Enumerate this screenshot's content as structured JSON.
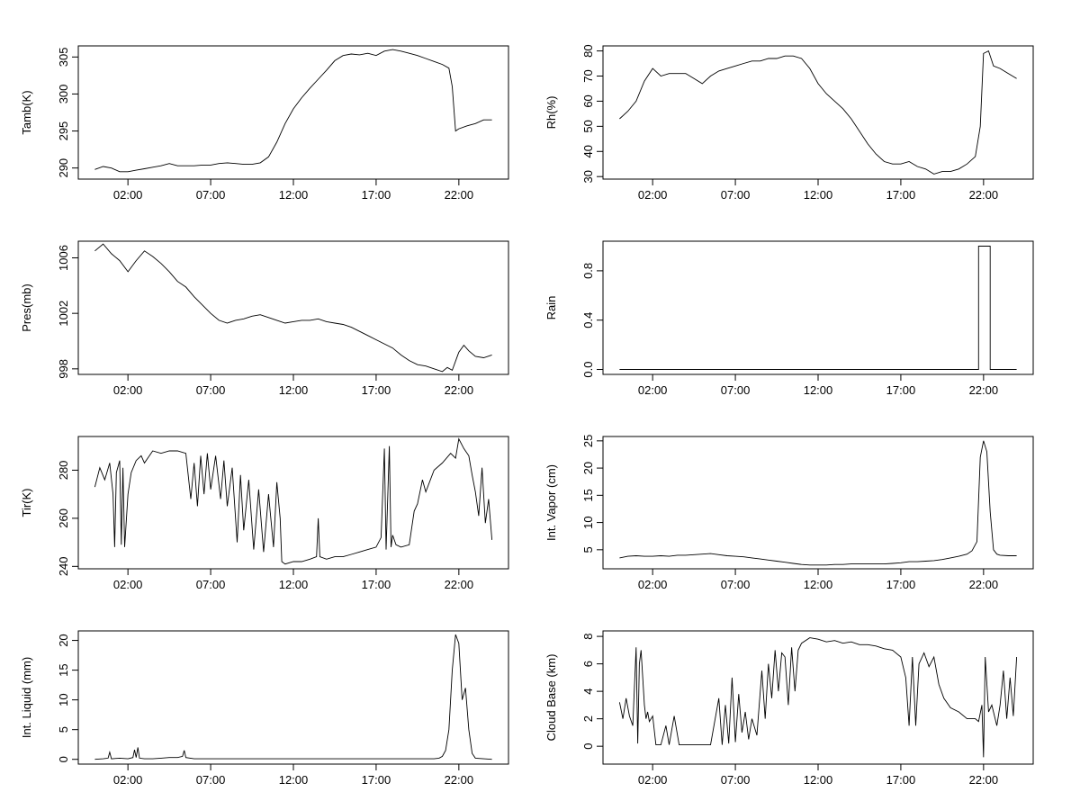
{
  "chart_data": [
    {
      "type": "line",
      "ylabel": "Tamb(K)",
      "xticks": [
        "02:00",
        "07:00",
        "12:00",
        "17:00",
        "22:00"
      ],
      "yticks": [
        290,
        295,
        300,
        305
      ],
      "ylim": [
        288.5,
        306.5
      ],
      "series": [
        {
          "x": [
            0.0,
            0.5,
            1.0,
            1.5,
            2.0,
            2.5,
            3.0,
            3.5,
            4.0,
            4.5,
            5.0,
            5.5,
            6.0,
            6.5,
            7.0,
            7.5,
            8.0,
            8.5,
            9.0,
            9.5,
            10.0,
            10.5,
            11.0,
            11.5,
            12.0,
            12.5,
            13.0,
            13.5,
            14.0,
            14.5,
            15.0,
            15.5,
            16.0,
            16.5,
            17.0,
            17.5,
            18.0,
            18.5,
            19.0,
            19.5,
            20.0,
            20.5,
            21.0,
            21.4,
            21.6,
            21.8,
            22.0,
            22.5,
            23.0,
            23.5,
            24.0
          ],
          "y": [
            289.8,
            290.2,
            290.0,
            289.5,
            289.5,
            289.7,
            289.9,
            290.1,
            290.3,
            290.6,
            290.3,
            290.3,
            290.3,
            290.4,
            290.4,
            290.6,
            290.7,
            290.6,
            290.5,
            290.5,
            290.7,
            291.5,
            293.5,
            296.0,
            298.0,
            299.5,
            300.8,
            302.0,
            303.2,
            304.5,
            305.2,
            305.4,
            305.3,
            305.5,
            305.2,
            305.8,
            306.0,
            305.8,
            305.5,
            305.2,
            304.8,
            304.4,
            304.0,
            303.5,
            301.0,
            295.0,
            295.3,
            295.7,
            296.0,
            296.5,
            296.5
          ]
        }
      ]
    },
    {
      "type": "line",
      "ylabel": "Rh(%)",
      "xticks": [
        "02:00",
        "07:00",
        "12:00",
        "17:00",
        "22:00"
      ],
      "yticks": [
        30,
        40,
        50,
        60,
        70,
        80
      ],
      "ylim": [
        29,
        82
      ],
      "series": [
        {
          "x": [
            0.0,
            0.5,
            1.0,
            1.5,
            2.0,
            2.5,
            3.0,
            3.5,
            4.0,
            4.5,
            5.0,
            5.5,
            6.0,
            6.5,
            7.0,
            7.5,
            8.0,
            8.5,
            9.0,
            9.5,
            10.0,
            10.5,
            11.0,
            11.5,
            12.0,
            12.5,
            13.0,
            13.5,
            14.0,
            14.5,
            15.0,
            15.5,
            16.0,
            16.5,
            17.0,
            17.5,
            18.0,
            18.5,
            19.0,
            19.5,
            20.0,
            20.5,
            21.0,
            21.5,
            21.8,
            22.0,
            22.3,
            22.6,
            23.0,
            23.5,
            24.0
          ],
          "y": [
            53,
            56,
            60,
            68,
            73,
            70,
            71,
            71,
            71,
            69,
            67,
            70,
            72,
            73,
            74,
            75,
            76,
            76,
            77,
            77,
            78,
            78,
            77,
            73,
            67,
            63,
            60,
            57,
            53,
            48,
            43,
            39,
            36,
            35,
            35,
            36,
            34,
            33,
            31,
            32,
            32,
            33,
            35,
            38,
            50,
            79,
            80,
            74,
            73,
            71,
            69
          ]
        }
      ]
    },
    {
      "type": "line",
      "ylabel": "Pres(mb)",
      "xticks": [
        "02:00",
        "07:00",
        "12:00",
        "17:00",
        "22:00"
      ],
      "yticks": [
        998,
        1002,
        1006
      ],
      "ylim": [
        997.6,
        1007.2
      ],
      "series": [
        {
          "x": [
            0.0,
            0.5,
            1.0,
            1.5,
            2.0,
            2.5,
            3.0,
            3.5,
            4.0,
            4.5,
            5.0,
            5.5,
            6.0,
            6.5,
            7.0,
            7.5,
            8.0,
            8.5,
            9.0,
            9.5,
            10.0,
            10.5,
            11.0,
            11.5,
            12.0,
            12.5,
            13.0,
            13.5,
            14.0,
            14.5,
            15.0,
            15.5,
            16.0,
            16.5,
            17.0,
            17.5,
            18.0,
            18.5,
            19.0,
            19.5,
            20.0,
            20.5,
            21.0,
            21.3,
            21.6,
            22.0,
            22.3,
            22.6,
            23.0,
            23.5,
            24.0
          ],
          "y": [
            1006.5,
            1007.0,
            1006.3,
            1005.8,
            1005.0,
            1005.8,
            1006.5,
            1006.1,
            1005.6,
            1005.0,
            1004.3,
            1003.9,
            1003.2,
            1002.6,
            1002.0,
            1001.5,
            1001.3,
            1001.5,
            1001.6,
            1001.8,
            1001.9,
            1001.7,
            1001.5,
            1001.3,
            1001.4,
            1001.5,
            1001.5,
            1001.6,
            1001.4,
            1001.3,
            1001.2,
            1001.0,
            1000.7,
            1000.4,
            1000.1,
            999.8,
            999.5,
            999.0,
            998.6,
            998.3,
            998.2,
            998.0,
            997.8,
            998.1,
            997.9,
            999.2,
            999.7,
            999.3,
            998.9,
            998.8,
            999.0
          ]
        }
      ]
    },
    {
      "type": "line",
      "ylabel": "Rain",
      "xticks": [
        "02:00",
        "07:00",
        "12:00",
        "17:00",
        "22:00"
      ],
      "yticks": [
        "0.0",
        "0.4",
        "0.8"
      ],
      "ylim": [
        -0.04,
        1.04
      ],
      "series": [
        {
          "x": [
            0.0,
            21.7,
            21.7,
            22.4,
            22.4,
            24.0
          ],
          "y": [
            0,
            0,
            1,
            1,
            0,
            0
          ]
        }
      ]
    },
    {
      "type": "line",
      "ylabel": "Tir(K)",
      "xticks": [
        "02:00",
        "07:00",
        "12:00",
        "17:00",
        "22:00"
      ],
      "yticks": [
        240,
        260,
        280
      ],
      "ylim": [
        239,
        294
      ],
      "series": [
        {
          "x": [
            0.0,
            0.3,
            0.6,
            0.9,
            1.1,
            1.2,
            1.3,
            1.5,
            1.6,
            1.7,
            1.8,
            2.0,
            2.2,
            2.5,
            2.8,
            3.0,
            3.5,
            4.0,
            4.5,
            5.0,
            5.5,
            5.8,
            6.0,
            6.2,
            6.4,
            6.6,
            6.8,
            7.0,
            7.3,
            7.6,
            7.8,
            8.0,
            8.3,
            8.6,
            8.8,
            9.0,
            9.3,
            9.6,
            9.9,
            10.2,
            10.5,
            10.8,
            11.0,
            11.2,
            11.3,
            11.5,
            12.0,
            12.5,
            13.0,
            13.4,
            13.5,
            13.6,
            14.0,
            14.5,
            15.0,
            15.5,
            16.0,
            16.5,
            17.0,
            17.3,
            17.5,
            17.6,
            17.8,
            17.9,
            18.0,
            18.2,
            18.5,
            19.0,
            19.3,
            19.5,
            19.8,
            20.0,
            20.5,
            21.0,
            21.5,
            21.8,
            22.0,
            22.3,
            22.6,
            22.8,
            23.0,
            23.2,
            23.4,
            23.6,
            23.8,
            24.0
          ],
          "y": [
            273,
            281,
            276,
            283,
            270,
            248,
            279,
            284,
            249,
            281,
            248,
            270,
            279,
            284,
            286,
            283,
            288,
            287,
            288,
            288,
            287,
            268,
            283,
            265,
            286,
            270,
            287,
            272,
            286,
            268,
            284,
            265,
            281,
            250,
            278,
            255,
            276,
            247,
            272,
            246,
            270,
            248,
            275,
            260,
            242,
            241,
            242,
            242,
            243,
            244,
            260,
            244,
            243,
            244,
            244,
            245,
            246,
            247,
            248,
            252,
            289,
            247,
            290,
            248,
            253,
            249,
            248,
            249,
            263,
            266,
            276,
            271,
            280,
            283,
            287,
            285,
            293,
            289,
            286,
            278,
            271,
            261,
            281,
            258,
            268,
            251
          ]
        }
      ]
    },
    {
      "type": "line",
      "ylabel": "Int. Vapor (cm)",
      "xticks": [
        "02:00",
        "07:00",
        "12:00",
        "17:00",
        "22:00"
      ],
      "yticks": [
        5,
        10,
        15,
        20,
        25
      ],
      "ylim": [
        1.5,
        25.8
      ],
      "series": [
        {
          "x": [
            0.0,
            0.5,
            1.0,
            1.5,
            2.0,
            2.5,
            3.0,
            3.5,
            4.0,
            4.5,
            5.0,
            5.5,
            6.0,
            6.5,
            7.0,
            7.5,
            8.0,
            8.5,
            9.0,
            9.5,
            10.0,
            10.5,
            11.0,
            11.5,
            12.0,
            12.5,
            13.0,
            13.5,
            14.0,
            14.5,
            15.0,
            15.5,
            16.0,
            16.5,
            17.0,
            17.5,
            18.0,
            18.5,
            19.0,
            19.5,
            20.0,
            20.5,
            21.0,
            21.3,
            21.6,
            21.8,
            22.0,
            22.2,
            22.4,
            22.6,
            22.8,
            23.0,
            23.5,
            24.0
          ],
          "y": [
            3.5,
            3.8,
            3.9,
            3.8,
            3.8,
            3.9,
            3.8,
            4.0,
            4.0,
            4.1,
            4.2,
            4.3,
            4.1,
            3.9,
            3.8,
            3.7,
            3.5,
            3.3,
            3.1,
            2.9,
            2.7,
            2.5,
            2.3,
            2.2,
            2.2,
            2.2,
            2.3,
            2.3,
            2.4,
            2.4,
            2.4,
            2.4,
            2.4,
            2.5,
            2.6,
            2.8,
            2.8,
            2.9,
            3.0,
            3.2,
            3.5,
            3.8,
            4.2,
            4.8,
            6.5,
            22.0,
            25.0,
            23.0,
            12.0,
            5.0,
            4.2,
            4.0,
            3.9,
            3.9
          ]
        }
      ]
    },
    {
      "type": "line",
      "ylabel": "Int. Liquid (mm)",
      "xticks": [
        "02:00",
        "07:00",
        "12:00",
        "17:00",
        "22:00"
      ],
      "yticks": [
        0,
        5,
        10,
        15,
        20
      ],
      "ylim": [
        -0.8,
        21.6
      ],
      "series": [
        {
          "x": [
            0.0,
            0.5,
            0.8,
            0.9,
            1.0,
            1.5,
            2.0,
            2.3,
            2.4,
            2.5,
            2.6,
            2.7,
            3.0,
            3.5,
            4.0,
            4.5,
            5.0,
            5.3,
            5.4,
            5.5,
            6.0,
            7.0,
            8.0,
            9.0,
            10.0,
            11.0,
            12.0,
            13.0,
            14.0,
            15.0,
            16.0,
            17.0,
            18.0,
            19.0,
            20.0,
            20.5,
            20.8,
            21.0,
            21.2,
            21.4,
            21.6,
            21.8,
            22.0,
            22.2,
            22.4,
            22.6,
            22.8,
            23.0,
            23.5,
            24.0
          ],
          "y": [
            0,
            0.1,
            0.2,
            1.2,
            0.1,
            0.2,
            0.1,
            0.3,
            1.6,
            0.3,
            2.0,
            0.2,
            0.1,
            0.1,
            0.2,
            0.3,
            0.3,
            0.5,
            1.5,
            0.3,
            0.1,
            0.1,
            0.1,
            0.1,
            0.1,
            0.1,
            0.1,
            0.1,
            0.1,
            0.1,
            0.1,
            0.1,
            0.1,
            0.1,
            0.1,
            0.1,
            0.2,
            0.5,
            1.5,
            5.0,
            15.0,
            21.0,
            19.5,
            10.0,
            12.0,
            5.0,
            1.0,
            0.2,
            0.1,
            0
          ]
        }
      ]
    },
    {
      "type": "line",
      "ylabel": "Cloud Base (km)",
      "xticks": [
        "02:00",
        "07:00",
        "12:00",
        "17:00",
        "22:00"
      ],
      "yticks": [
        0,
        2,
        4,
        6,
        8
      ],
      "ylim": [
        -1.3,
        8.4
      ],
      "series": [
        {
          "x": [
            0.0,
            0.2,
            0.4,
            0.6,
            0.8,
            1.0,
            1.1,
            1.2,
            1.3,
            1.5,
            1.6,
            1.7,
            1.8,
            2.0,
            2.2,
            2.5,
            2.8,
            3.0,
            3.3,
            3.6,
            4.0,
            4.4,
            4.6,
            4.8,
            5.0,
            5.5,
            6.0,
            6.2,
            6.4,
            6.6,
            6.8,
            7.0,
            7.2,
            7.4,
            7.6,
            7.8,
            8.0,
            8.3,
            8.6,
            8.8,
            9.0,
            9.2,
            9.4,
            9.6,
            9.8,
            10.0,
            10.2,
            10.4,
            10.6,
            10.8,
            11.0,
            11.5,
            12.0,
            12.5,
            13.0,
            13.5,
            14.0,
            14.5,
            15.0,
            15.5,
            16.0,
            16.5,
            17.0,
            17.3,
            17.5,
            17.7,
            17.9,
            18.1,
            18.4,
            18.7,
            19.0,
            19.3,
            19.6,
            20.0,
            20.5,
            21.0,
            21.5,
            21.7,
            21.9,
            22.0,
            22.1,
            22.3,
            22.5,
            22.8,
            23.0,
            23.2,
            23.4,
            23.6,
            23.8,
            24.0
          ],
          "y": [
            3.2,
            2.0,
            3.5,
            2.2,
            1.5,
            7.2,
            0.2,
            6.0,
            7.0,
            3.0,
            2.0,
            2.5,
            1.8,
            2.2,
            0.1,
            0.1,
            1.5,
            0.1,
            2.2,
            0.1,
            0.1,
            0.1,
            0.1,
            0.1,
            0.1,
            0.1,
            3.5,
            0.1,
            3.0,
            0.2,
            5.0,
            0.3,
            3.8,
            1.0,
            2.5,
            0.5,
            2.0,
            0.8,
            5.5,
            2.0,
            6.0,
            3.5,
            7.0,
            4.0,
            6.8,
            6.5,
            3.0,
            7.2,
            4.0,
            7.0,
            7.5,
            7.9,
            7.8,
            7.6,
            7.7,
            7.5,
            7.6,
            7.4,
            7.4,
            7.3,
            7.1,
            7.0,
            6.5,
            5.0,
            1.5,
            6.5,
            1.5,
            6.0,
            6.8,
            5.8,
            6.5,
            4.5,
            3.5,
            2.8,
            2.5,
            2.0,
            2.0,
            1.8,
            3.0,
            -0.8,
            6.5,
            2.5,
            3.0,
            1.5,
            3.0,
            5.5,
            2.0,
            5.0,
            2.2,
            6.5
          ]
        }
      ]
    }
  ]
}
